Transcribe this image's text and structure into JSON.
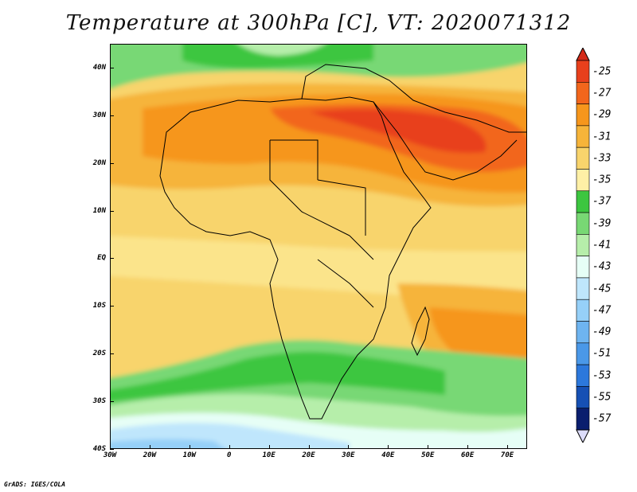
{
  "title": "Temperature at 300hPa [C], VT: 2020071312",
  "credit": "GrADS: IGES/COLA",
  "map": {
    "lon_range": [
      -30,
      75
    ],
    "lat_range": [
      -40,
      45
    ],
    "lat_ticks": [
      {
        "value": 40,
        "label": "40N"
      },
      {
        "value": 30,
        "label": "30N"
      },
      {
        "value": 20,
        "label": "20N"
      },
      {
        "value": 10,
        "label": "10N"
      },
      {
        "value": 0,
        "label": "EQ"
      },
      {
        "value": -10,
        "label": "10S"
      },
      {
        "value": -20,
        "label": "20S"
      },
      {
        "value": -30,
        "label": "30S"
      },
      {
        "value": -40,
        "label": "40S"
      }
    ],
    "lon_ticks": [
      {
        "value": -30,
        "label": "30W"
      },
      {
        "value": -20,
        "label": "20W"
      },
      {
        "value": -10,
        "label": "10W"
      },
      {
        "value": 0,
        "label": "0"
      },
      {
        "value": 10,
        "label": "10E"
      },
      {
        "value": 20,
        "label": "20E"
      },
      {
        "value": 30,
        "label": "30E"
      },
      {
        "value": 40,
        "label": "40E"
      },
      {
        "value": 50,
        "label": "50E"
      },
      {
        "value": 60,
        "label": "60E"
      },
      {
        "value": 70,
        "label": "70E"
      }
    ]
  },
  "colorbar": {
    "levels": [
      "-25",
      "-27",
      "-29",
      "-31",
      "-33",
      "-35",
      "-37",
      "-39",
      "-41",
      "-43",
      "-45",
      "-47",
      "-49",
      "-51",
      "-53",
      "-55",
      "-57"
    ],
    "colors": [
      "#e8401c",
      "#f2661c",
      "#f6961c",
      "#f6b43a",
      "#f8d46c",
      "#fef0a6",
      "#3cc640",
      "#78d874",
      "#b6eeaa",
      "#e6fef6",
      "#bfe6fc",
      "#96d0f8",
      "#6eb4f0",
      "#4a98e8",
      "#2c78dc",
      "#1650b4",
      "#0a1e6e"
    ],
    "top_arrow_color": "#d42a18",
    "bottom_arrow_color": "#dcdcfa"
  }
}
